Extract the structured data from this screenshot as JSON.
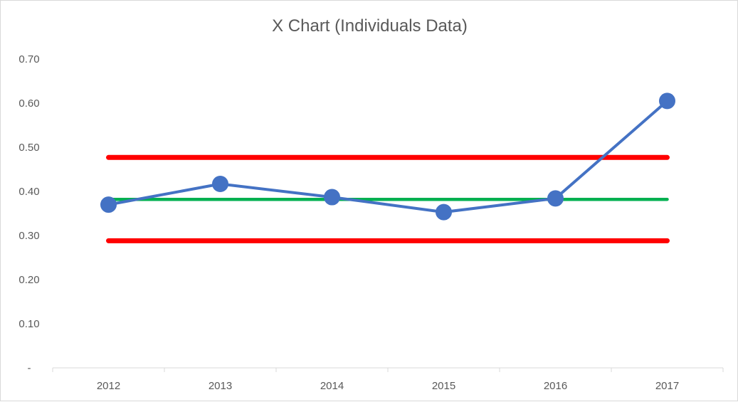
{
  "chart_data": {
    "type": "line",
    "title": "X Chart (Individuals Data)",
    "xlabel": "",
    "ylabel": "",
    "categories": [
      "2012",
      "2013",
      "2014",
      "2015",
      "2016",
      "2017"
    ],
    "ylim": [
      0,
      0.7
    ],
    "y_tick_labels": [
      "-",
      "0.10",
      "0.20",
      "0.30",
      "0.40",
      "0.50",
      "0.60",
      "0.70"
    ],
    "y_tick_values": [
      0,
      0.1,
      0.2,
      0.3,
      0.4,
      0.5,
      0.6,
      0.7
    ],
    "grid": false,
    "legend": "none",
    "series": [
      {
        "values": [
          0.37,
          0.417,
          0.387,
          0.353,
          0.384,
          0.605
        ],
        "color": "#4472c4",
        "style": "line-markers"
      },
      {
        "values": [
          0.382,
          0.382,
          0.382,
          0.382,
          0.382,
          0.382
        ],
        "color": "#00b050",
        "style": "line"
      },
      {
        "values": [
          0.477,
          0.477,
          0.477,
          0.477,
          0.477,
          0.477
        ],
        "color": "#ff0000",
        "style": "line"
      },
      {
        "values": [
          0.288,
          0.288,
          0.288,
          0.288,
          0.288,
          0.288
        ],
        "color": "#ff0000",
        "style": "line"
      }
    ]
  }
}
